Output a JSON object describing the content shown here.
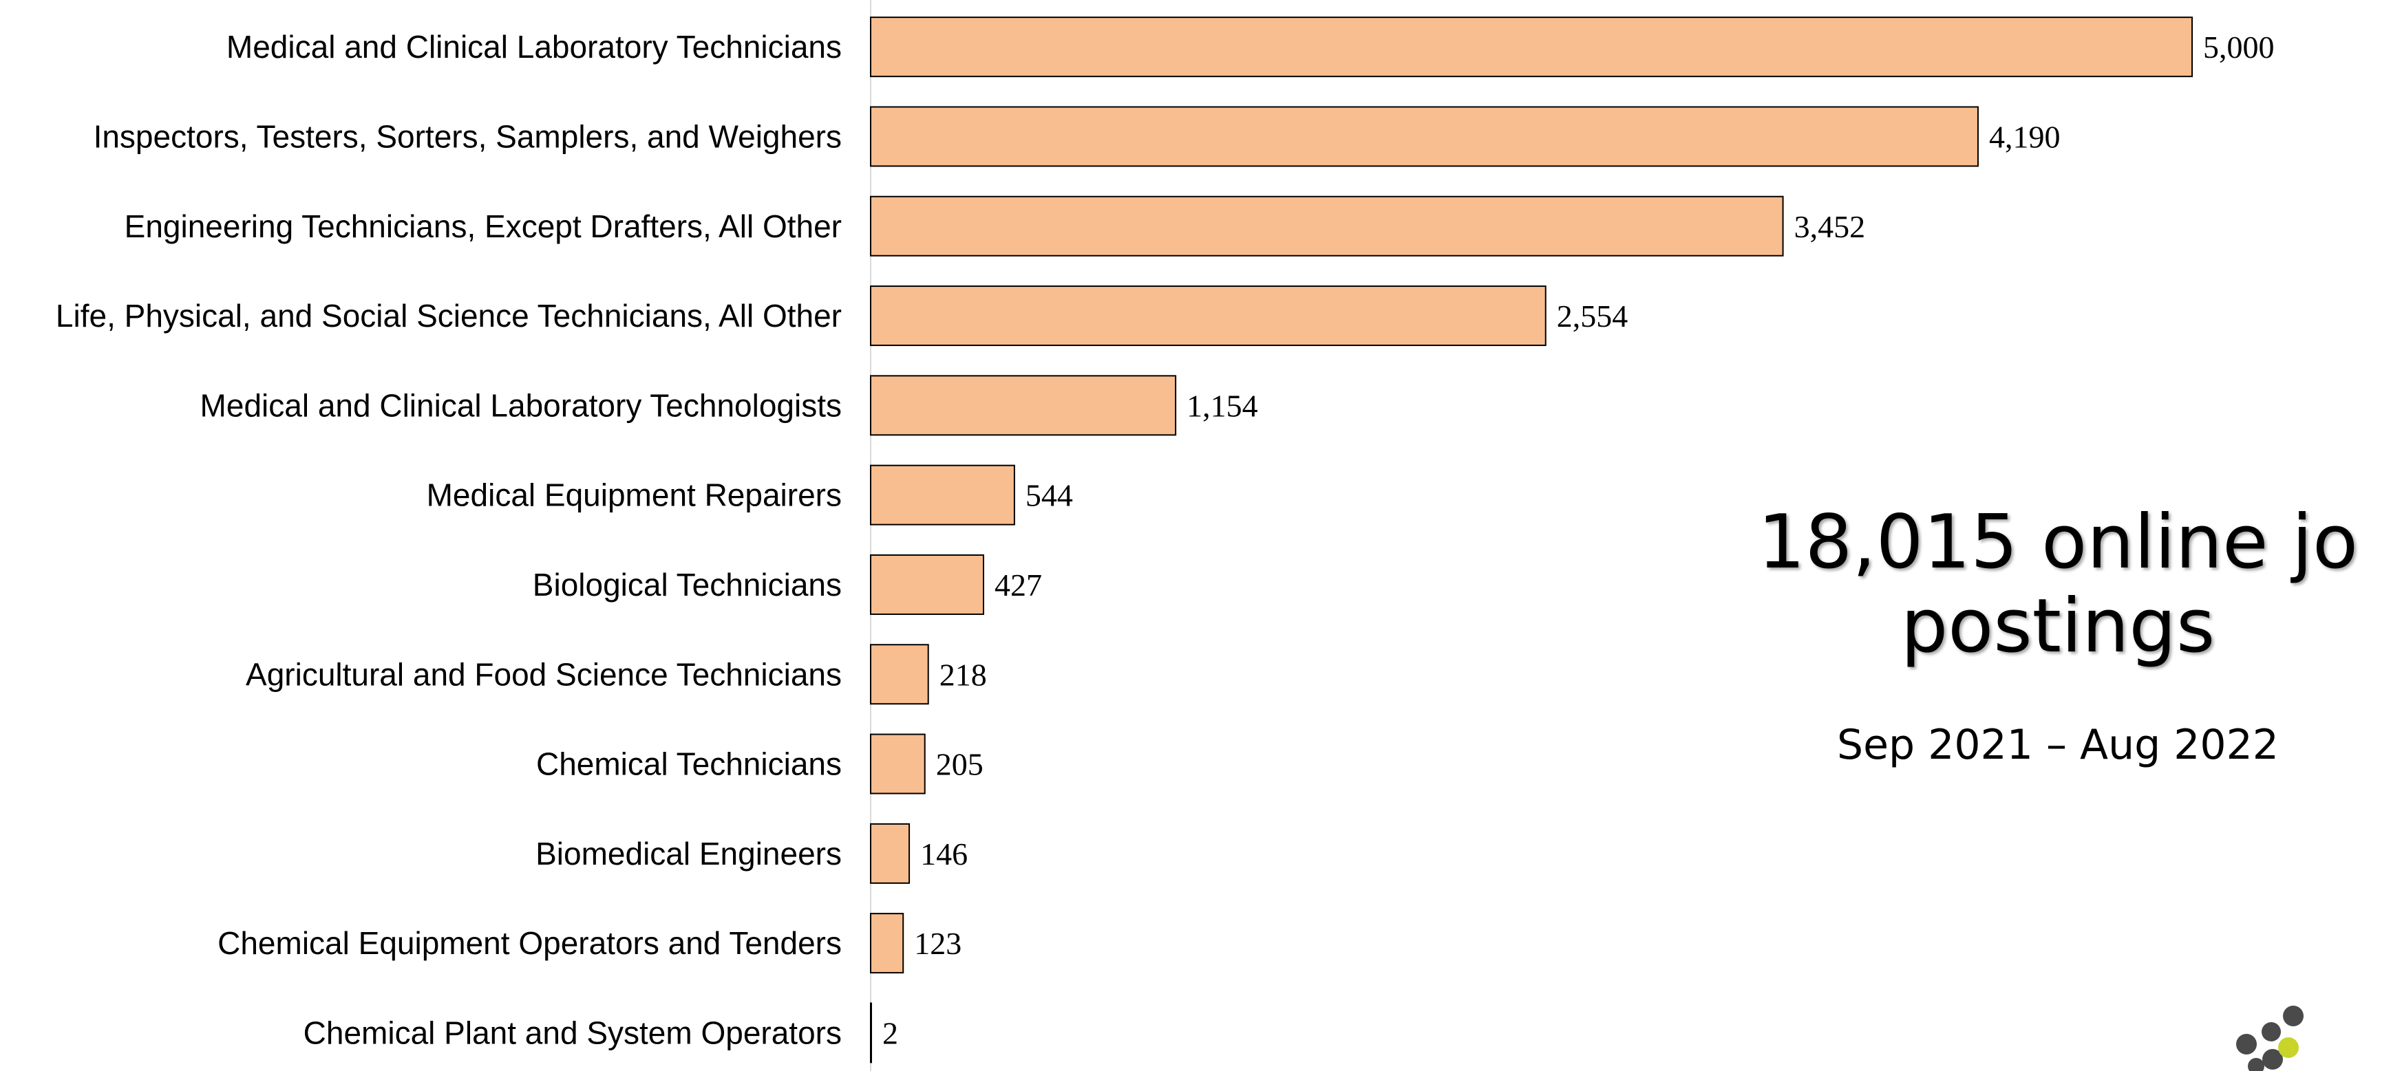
{
  "chart_data": {
    "type": "bar",
    "orientation": "horizontal",
    "categories": [
      "Medical and Clinical Laboratory Technicians",
      "Inspectors, Testers, Sorters, Samplers, and Weighers",
      "Engineering Technicians, Except Drafters, All Other",
      "Life, Physical, and Social Science Technicians, All Other",
      "Medical and Clinical Laboratory Technologists",
      "Medical Equipment Repairers",
      "Biological Technicians",
      "Agricultural and Food Science Technicians",
      "Chemical Technicians",
      "Biomedical Engineers",
      "Chemical Equipment Operators and Tenders",
      "Chemical Plant and System Operators"
    ],
    "values": [
      5000,
      4190,
      3452,
      2554,
      1154,
      544,
      427,
      218,
      205,
      146,
      123,
      2
    ],
    "value_labels": [
      "5,000",
      "4,190",
      "3,452",
      "2,554",
      "1,154",
      "544",
      "427",
      "218",
      "205",
      "146",
      "123",
      "2"
    ],
    "xlim": [
      0,
      5000
    ],
    "grid": false,
    "legend": "none",
    "colors": {
      "bar_fill": "#f9be8f",
      "bar_stroke": "#000000",
      "axis": "#d9d9d9"
    }
  },
  "headline": {
    "line1": "18,015 online jo",
    "line2": "postings"
  },
  "subtitle": "Sep 2021 – Aug 2022",
  "logo": {
    "icon": "dots-logo-icon",
    "colors": [
      "#4a4a4a",
      "#c8d42a"
    ]
  }
}
